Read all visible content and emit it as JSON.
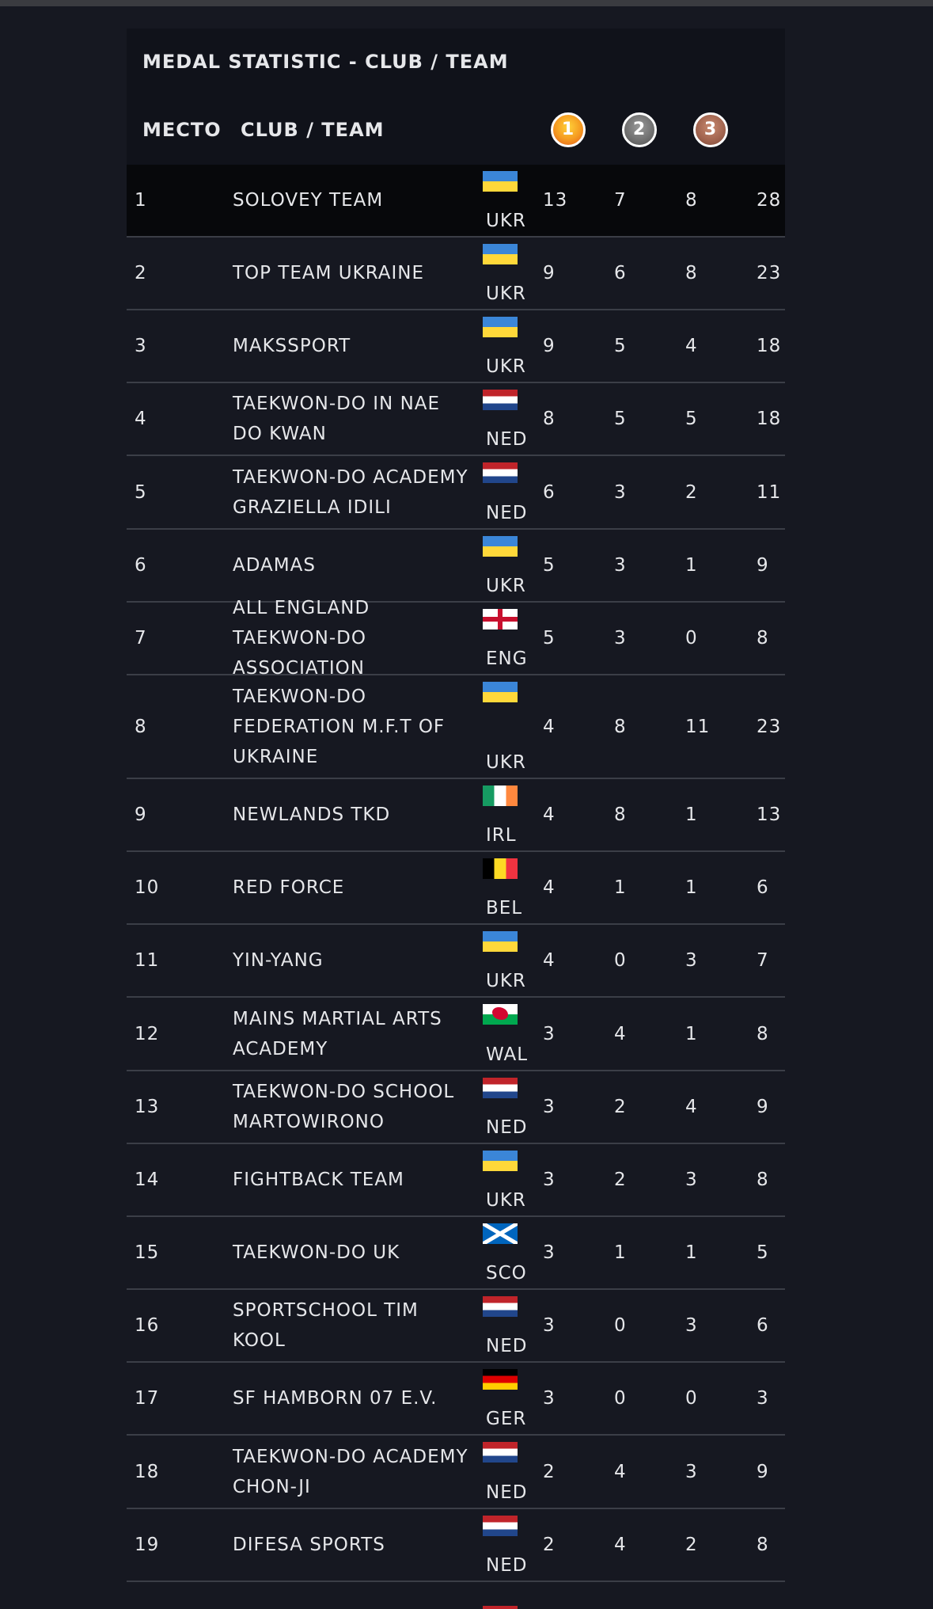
{
  "title": "MEDAL STATISTIC - CLUB / TEAM",
  "headers": {
    "place": "МЕСТО",
    "club": "CLUB / TEAM",
    "gold": "1",
    "silver": "2",
    "bronze": "3"
  },
  "rows": [
    {
      "place": "1",
      "club": "SOLOVEY TEAM",
      "flag": "ukr",
      "code": "UKR",
      "gold": "13",
      "silver": "7",
      "bronze": "8",
      "total": "28"
    },
    {
      "place": "2",
      "club": "TOP TEAM UKRAINE",
      "flag": "ukr",
      "code": "UKR",
      "gold": "9",
      "silver": "6",
      "bronze": "8",
      "total": "23"
    },
    {
      "place": "3",
      "club": "MAKSSPORT",
      "flag": "ukr",
      "code": "UKR",
      "gold": "9",
      "silver": "5",
      "bronze": "4",
      "total": "18"
    },
    {
      "place": "4",
      "club": "TAEKWON-DO IN NAE DO KWAN",
      "flag": "ned",
      "code": "NED",
      "gold": "8",
      "silver": "5",
      "bronze": "5",
      "total": "18"
    },
    {
      "place": "5",
      "club": "TAEKWON-DO ACADEMY GRAZIELLA IDILI",
      "flag": "ned",
      "code": "NED",
      "gold": "6",
      "silver": "3",
      "bronze": "2",
      "total": "11"
    },
    {
      "place": "6",
      "club": "ADAMAS",
      "flag": "ukr",
      "code": "UKR",
      "gold": "5",
      "silver": "3",
      "bronze": "1",
      "total": "9"
    },
    {
      "place": "7",
      "club": "ALL ENGLAND TAEKWON-DO ASSOCIATION",
      "flag": "eng",
      "code": "ENG",
      "gold": "5",
      "silver": "3",
      "bronze": "0",
      "total": "8"
    },
    {
      "place": "8",
      "club": "TAEKWON-DO FEDERATION M.F.T OF UKRAINE",
      "flag": "ukr",
      "code": "UKR",
      "gold": "4",
      "silver": "8",
      "bronze": "11",
      "total": "23"
    },
    {
      "place": "9",
      "club": "NEWLANDS TKD",
      "flag": "irl",
      "code": "IRL",
      "gold": "4",
      "silver": "8",
      "bronze": "1",
      "total": "13"
    },
    {
      "place": "10",
      "club": "RED FORCE",
      "flag": "bel",
      "code": "BEL",
      "gold": "4",
      "silver": "1",
      "bronze": "1",
      "total": "6"
    },
    {
      "place": "11",
      "club": "YIN-YANG",
      "flag": "ukr",
      "code": "UKR",
      "gold": "4",
      "silver": "0",
      "bronze": "3",
      "total": "7"
    },
    {
      "place": "12",
      "club": "MAINS MARTIAL ARTS ACADEMY",
      "flag": "wal",
      "code": "WAL",
      "gold": "3",
      "silver": "4",
      "bronze": "1",
      "total": "8"
    },
    {
      "place": "13",
      "club": "TAEKWON-DO SCHOOL MARTOWIRONO",
      "flag": "ned",
      "code": "NED",
      "gold": "3",
      "silver": "2",
      "bronze": "4",
      "total": "9"
    },
    {
      "place": "14",
      "club": "FIGHTBACK TEAM",
      "flag": "ukr",
      "code": "UKR",
      "gold": "3",
      "silver": "2",
      "bronze": "3",
      "total": "8"
    },
    {
      "place": "15",
      "club": "TAEKWON-DO UK",
      "flag": "sco",
      "code": "SCO",
      "gold": "3",
      "silver": "1",
      "bronze": "1",
      "total": "5"
    },
    {
      "place": "16",
      "club": "SPORTSCHOOL TIM KOOL",
      "flag": "ned",
      "code": "NED",
      "gold": "3",
      "silver": "0",
      "bronze": "3",
      "total": "6"
    },
    {
      "place": "17",
      "club": "SF HAMBORN 07 E.V.",
      "flag": "ger",
      "code": "GER",
      "gold": "3",
      "silver": "0",
      "bronze": "0",
      "total": "3"
    },
    {
      "place": "18",
      "club": "TAEKWON-DO ACADEMY CHON-JI",
      "flag": "ned",
      "code": "NED",
      "gold": "2",
      "silver": "4",
      "bronze": "3",
      "total": "9"
    },
    {
      "place": "19",
      "club": "DIFESA SPORTS",
      "flag": "ned",
      "code": "NED",
      "gold": "2",
      "silver": "4",
      "bronze": "2",
      "total": "8"
    }
  ]
}
